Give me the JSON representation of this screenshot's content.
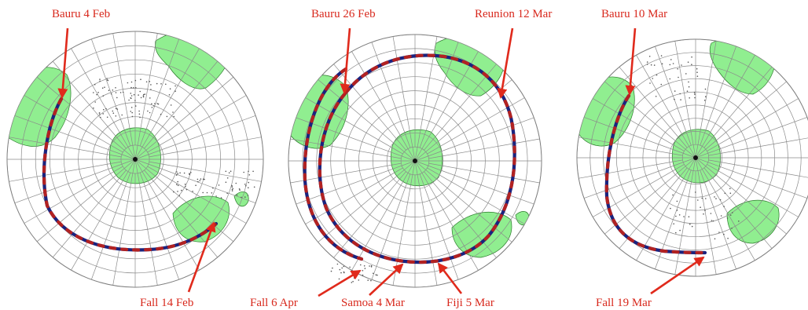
{
  "colors": {
    "land": "#90ee90",
    "track_primary": "#1a237e",
    "track_secondary": "#b22222",
    "label": "#d8281c",
    "grid": "#8a8a8a"
  },
  "maps": [
    {
      "name": "map-left",
      "labels": [
        {
          "key": "start",
          "text": "Bauru 4 Feb"
        },
        {
          "key": "end",
          "text": "Fall 14 Feb"
        }
      ]
    },
    {
      "name": "map-center",
      "labels": [
        {
          "key": "start",
          "text": "Bauru 26 Feb"
        },
        {
          "key": "reunion",
          "text": "Reunion 12 Mar"
        },
        {
          "key": "fall",
          "text": "Fall 6 Apr"
        },
        {
          "key": "samoa",
          "text": "Samoa 4 Mar"
        },
        {
          "key": "fiji",
          "text": "Fiji 5 Mar"
        }
      ]
    },
    {
      "name": "map-right",
      "labels": [
        {
          "key": "start",
          "text": "Bauru 10 Mar"
        },
        {
          "key": "end",
          "text": "Fall 19 Mar"
        }
      ]
    }
  ]
}
